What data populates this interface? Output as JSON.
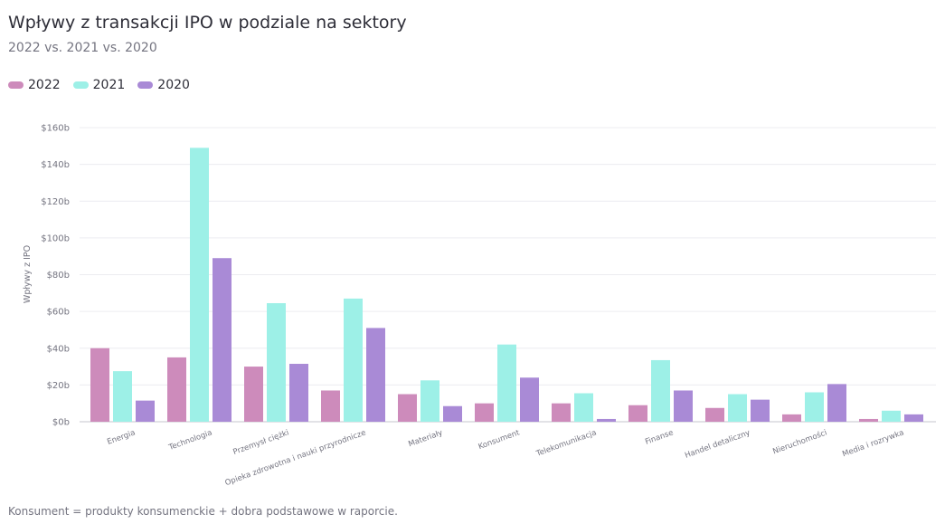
{
  "chart_data": {
    "type": "bar",
    "title": "Wpływy z transakcji IPO w podziale na sektory",
    "subtitle": "2022 vs. 2021 vs. 2020",
    "ylabel": "Wpływy z IPO",
    "xlabel": "",
    "ylim": [
      0,
      160
    ],
    "yticks": [
      "$0b",
      "$20b",
      "$40b",
      "$60b",
      "$80b",
      "$100b",
      "$120b",
      "$140b",
      "$160b"
    ],
    "categories": [
      "Energia",
      "Technologia",
      "Przemysł ciężki",
      "Opieka zdrowotna i nauki przyrodnicze",
      "Materiały",
      "Konsument",
      "Telekomunikacja",
      "Finanse",
      "Handel detaliczny",
      "Nieruchomości",
      "Media i rozrywka"
    ],
    "series": [
      {
        "name": "2022",
        "color": "#cd8bbb",
        "values": [
          40,
          35,
          30,
          17,
          15,
          10,
          10,
          9,
          7.5,
          4,
          1.5
        ]
      },
      {
        "name": "2021",
        "color": "#9df0e7",
        "values": [
          27.5,
          149,
          64.5,
          67,
          22.5,
          42,
          15.5,
          33.5,
          15,
          16,
          6
        ]
      },
      {
        "name": "2020",
        "color": "#a98ad6",
        "values": [
          11.5,
          89,
          31.5,
          51,
          8.5,
          24,
          1.5,
          17,
          12,
          20.5,
          4
        ]
      }
    ],
    "legend_position": "top-left",
    "grid": true,
    "footnote": "Konsument = produkty konsumenckie + dobra podstawowe w raporcie."
  }
}
